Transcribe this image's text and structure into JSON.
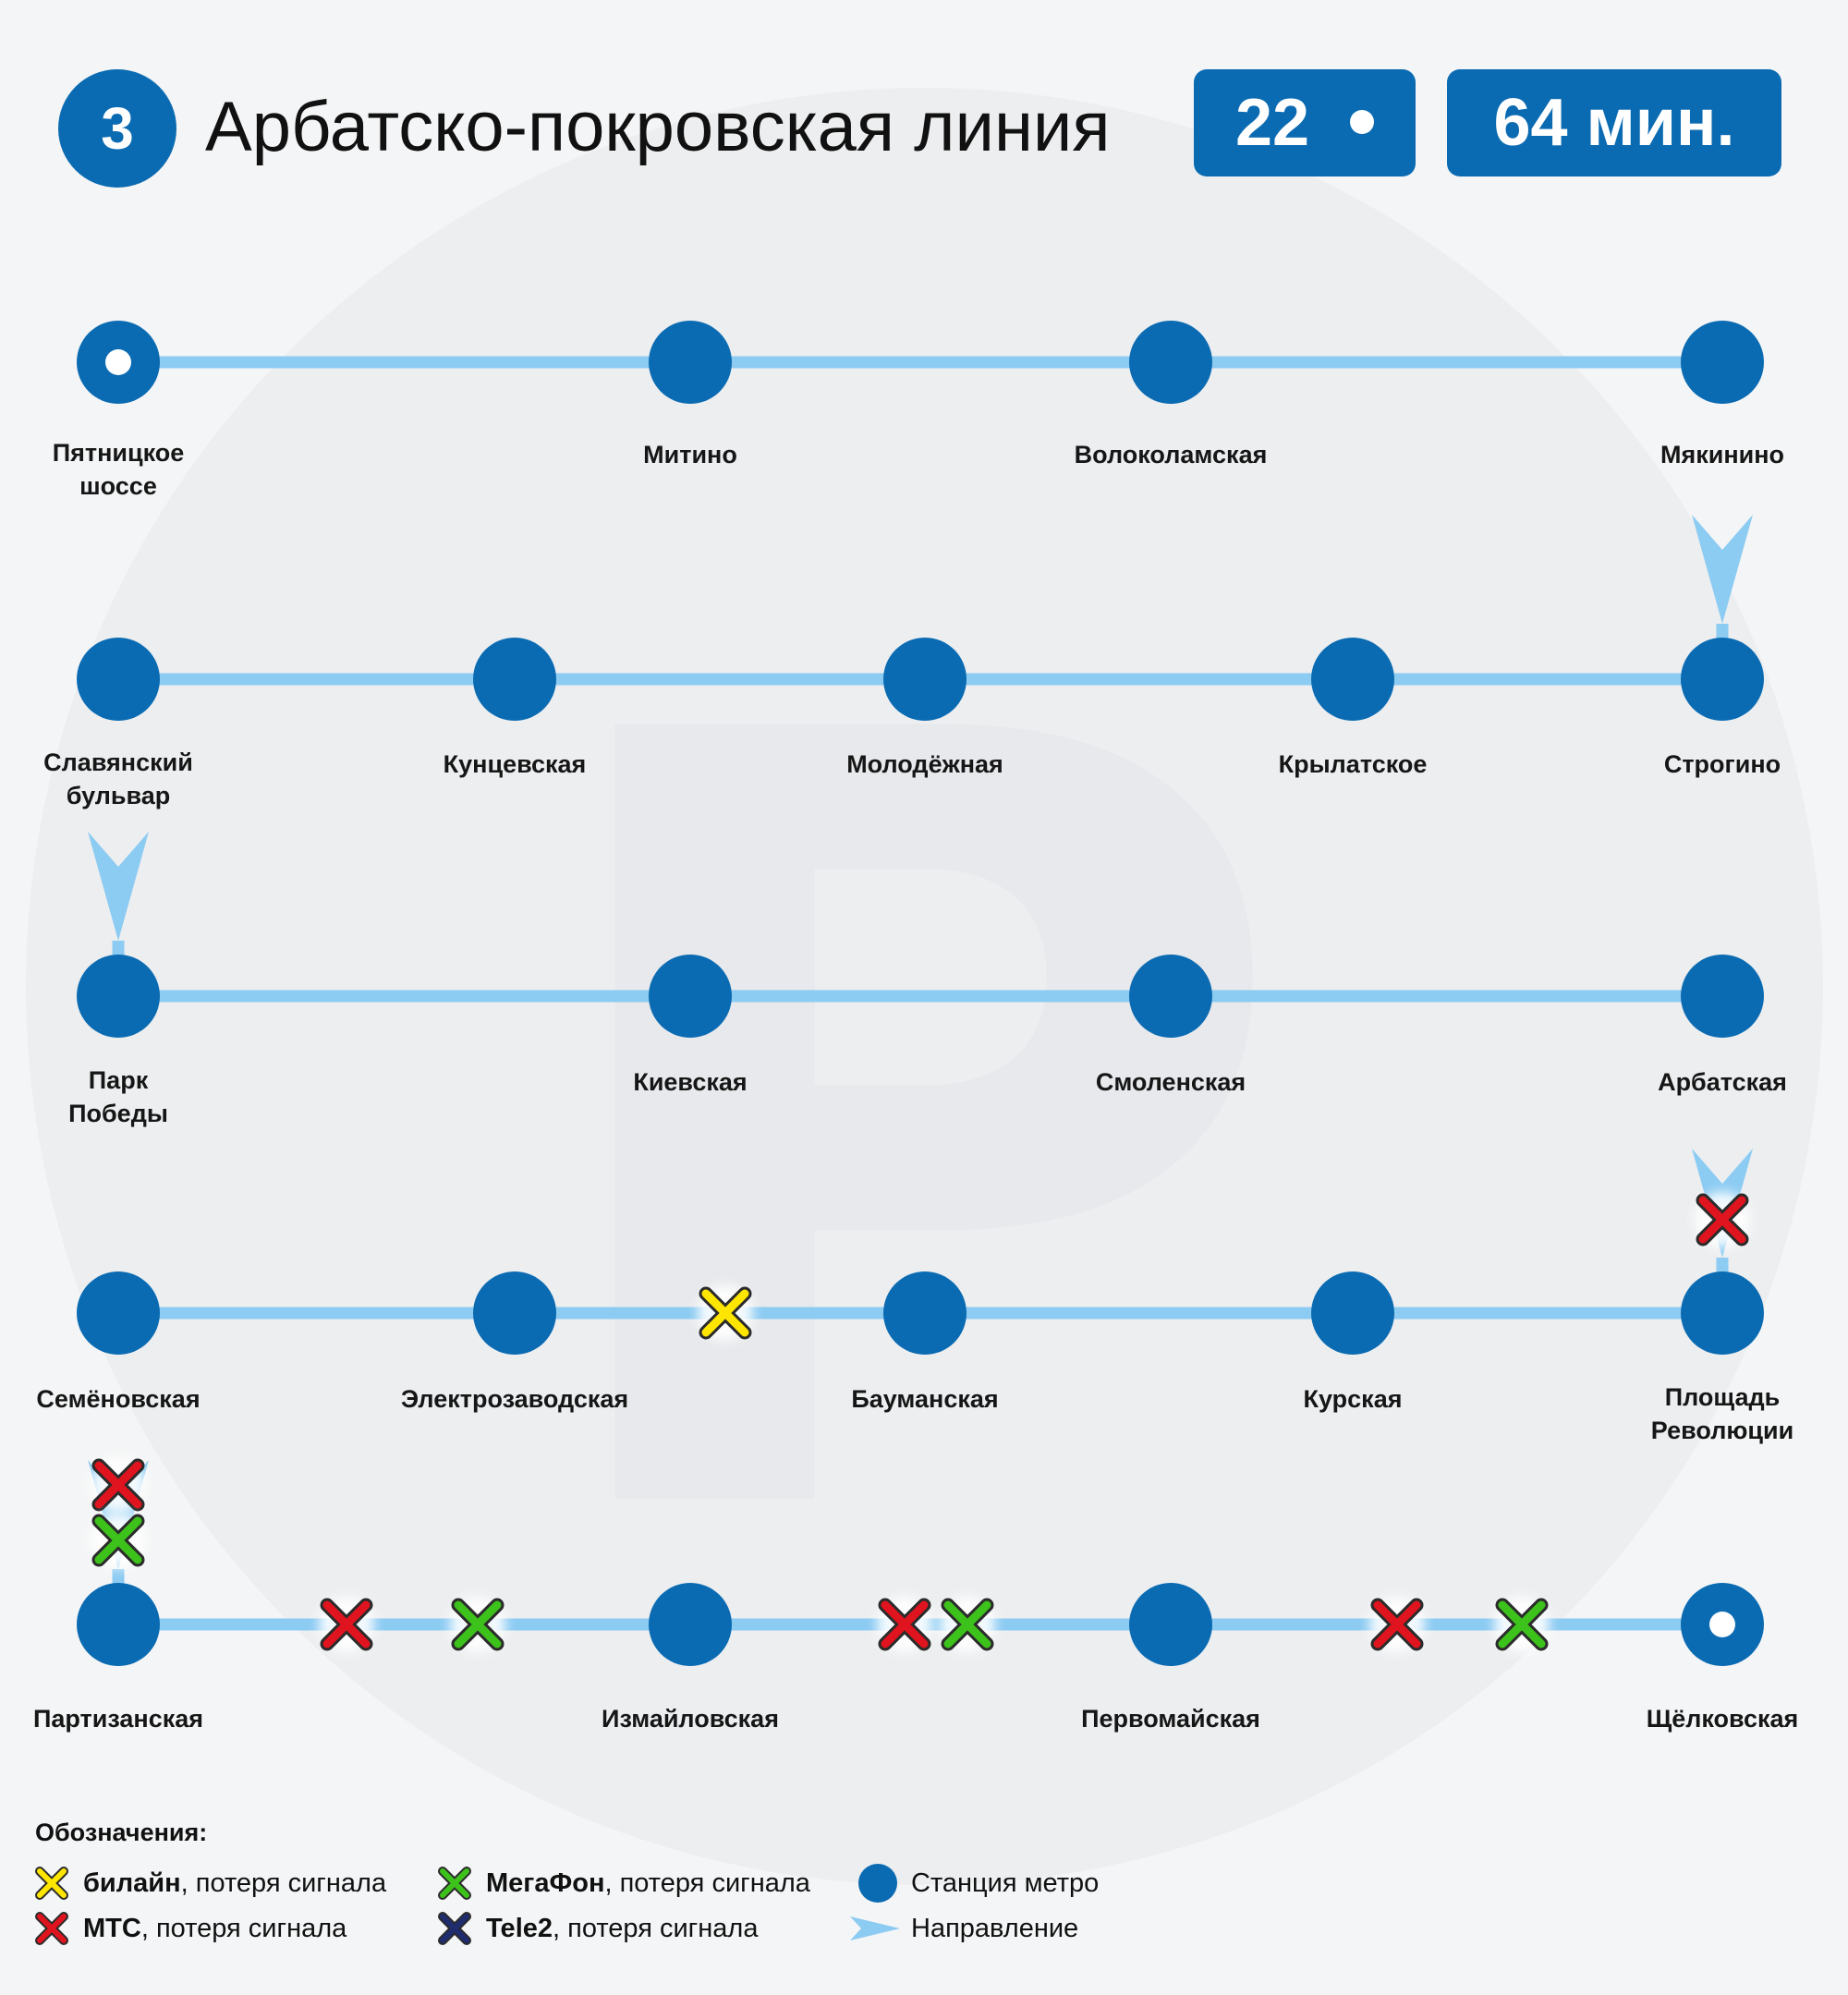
{
  "header": {
    "line_number": "3",
    "line_name": "Арбатско-покровская линия",
    "station_count": "22",
    "duration": "64 мин."
  },
  "colors": {
    "station": "#0b6bb2",
    "track": "#8ccbf2",
    "beeline": "#ffe600",
    "mts": "#e0141e",
    "megafon": "#3dc21c",
    "tele2": "#1f2c6e"
  },
  "rows": [
    {
      "stations": [
        {
          "name": "Пятницкое\nшоссе",
          "terminal": true
        },
        {
          "name": "Митино"
        },
        {
          "name": "Волоколамская"
        },
        {
          "name": "Мякинино"
        }
      ],
      "signal_loss": []
    },
    {
      "stations": [
        {
          "name": "Славянский\nбульвар"
        },
        {
          "name": "Кунцевская"
        },
        {
          "name": "Молодёжная"
        },
        {
          "name": "Крылатское"
        },
        {
          "name": "Строгино"
        }
      ],
      "signal_loss": []
    },
    {
      "stations": [
        {
          "name": "Парк\nПобеды"
        },
        {
          "name": "Киевская"
        },
        {
          "name": "Смоленская"
        },
        {
          "name": "Арбатская"
        }
      ],
      "signal_loss": []
    },
    {
      "stations": [
        {
          "name": "Семёновская"
        },
        {
          "name": "Электрозаводская"
        },
        {
          "name": "Бауманская"
        },
        {
          "name": "Курская"
        },
        {
          "name": "Площадь\nРеволюции"
        }
      ],
      "signal_loss": [
        {
          "segment": "Электрозаводская – Бауманская",
          "operator": "beeline"
        }
      ]
    },
    {
      "stations": [
        {
          "name": "Партизанская"
        },
        {
          "name": "Измайловская"
        },
        {
          "name": "Первомайская"
        },
        {
          "name": "Щёлковская",
          "terminal": true
        }
      ],
      "signal_loss": [
        {
          "segment": "Партизанская – Измайловская",
          "operator": "mts"
        },
        {
          "segment": "Партизанская – Измайловская",
          "operator": "megafon"
        },
        {
          "segment": "Измайловская – Первомайская",
          "operator": "mts"
        },
        {
          "segment": "Измайловская – Первомайская",
          "operator": "megafon"
        },
        {
          "segment": "Первомайская – Щёлковская",
          "operator": "mts"
        },
        {
          "segment": "Первомайская – Щёлковская",
          "operator": "megafon"
        }
      ]
    }
  ],
  "transfers": [
    {
      "between": "Мякинино – Строгино",
      "signal_loss": []
    },
    {
      "between": "Славянский бульвар – Парк Победы",
      "signal_loss": []
    },
    {
      "between": "Арбатская – Площадь Революции",
      "signal_loss": [
        "mts"
      ]
    },
    {
      "between": "Семёновская – Партизанская",
      "signal_loss": [
        "mts",
        "megafon"
      ]
    }
  ],
  "legend": {
    "title": "Обозначения:",
    "items": [
      {
        "brand": "билайн",
        "text": ", потеря сигнала",
        "icon": "cross-icon",
        "color": "#ffe600"
      },
      {
        "brand": "МТС",
        "text": ", потеря сигнала",
        "icon": "cross-icon",
        "color": "#e0141e"
      },
      {
        "brand": "МегаФон",
        "text": ", потеря сигнала",
        "icon": "cross-icon",
        "color": "#3dc21c"
      },
      {
        "brand": "Tele2",
        "text": ", потеря сигнала",
        "icon": "cross-icon",
        "color": "#1f2c6e"
      },
      {
        "text": "Станция метро",
        "icon": "station-dot-icon"
      },
      {
        "text": "Направление",
        "icon": "direction-arrow-icon"
      }
    ]
  }
}
